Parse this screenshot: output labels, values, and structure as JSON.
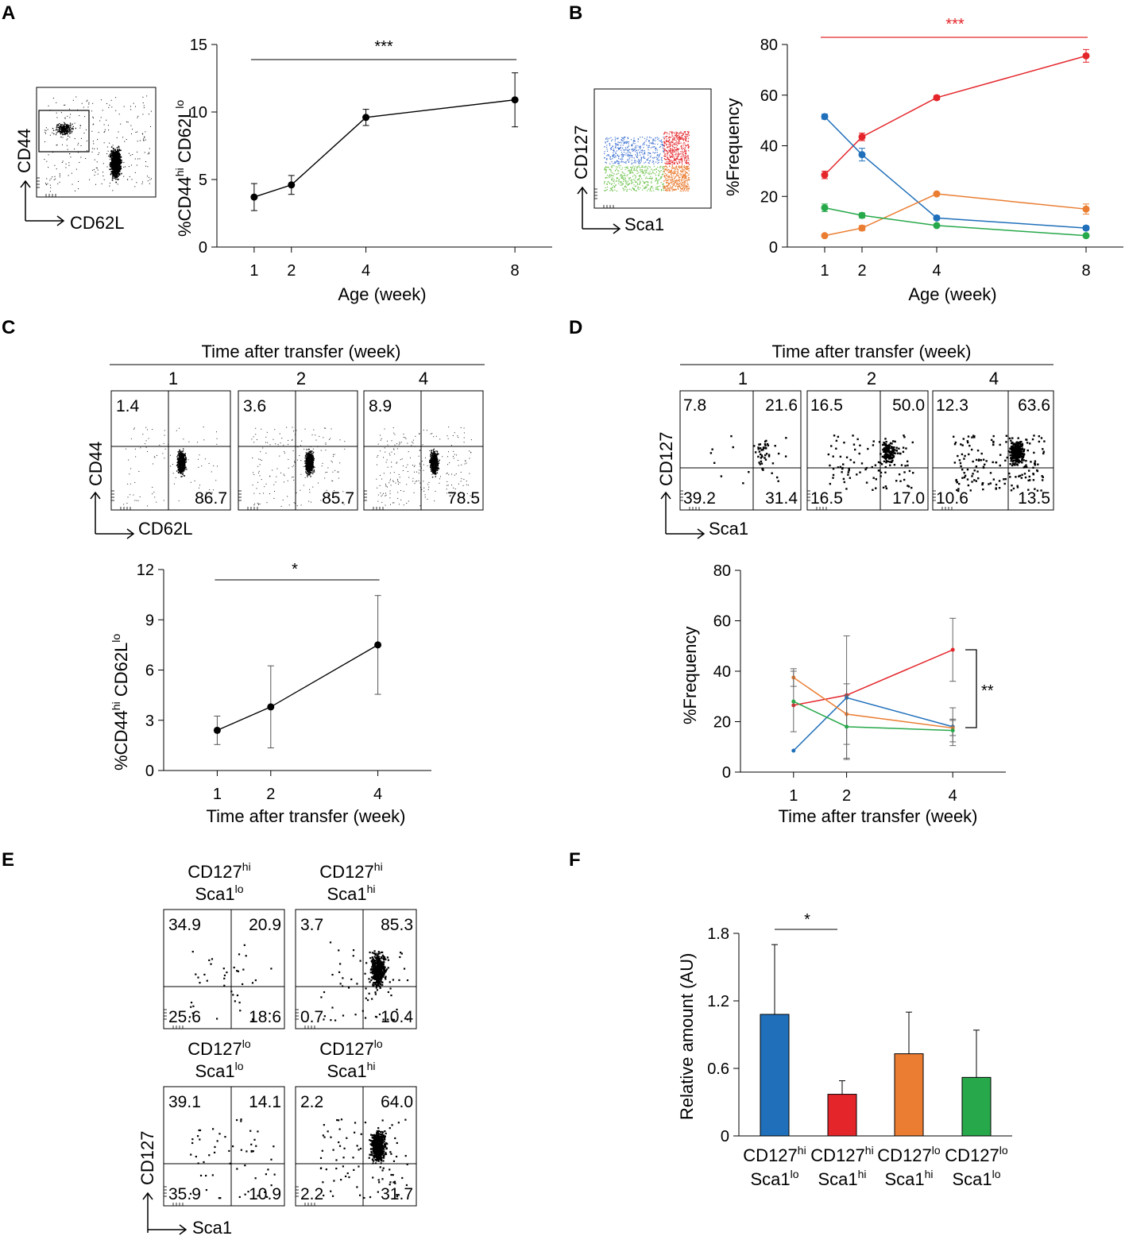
{
  "figure": {
    "panels": {
      "A": {
        "letter": "A",
        "flow": {
          "y_label": "CD44",
          "x_label": "CD62L"
        },
        "chart": {
          "ylabel_main": "%CD44",
          "ylabel_sup1": "hi",
          "ylabel_mid": " CD62L",
          "ylabel_sup2": "lo",
          "xlabel": "Age (week)",
          "sig": "***"
        }
      },
      "B": {
        "letter": "B",
        "flow": {
          "y_label": "CD127",
          "x_label": "Sca1"
        },
        "chart": {
          "ylabel": "%Frequency",
          "xlabel": "Age (week)",
          "sig": "***"
        }
      },
      "C": {
        "letter": "C",
        "header": "Time after transfer (week)",
        "plot_titles": [
          "1",
          "2",
          "4"
        ],
        "plots": [
          {
            "ul": "1.4",
            "lr": "86.7"
          },
          {
            "ul": "3.6",
            "lr": "85.7"
          },
          {
            "ul": "8.9",
            "lr": "78.5"
          }
        ],
        "y_label": "CD44",
        "x_label": "CD62L",
        "chart": {
          "ylabel_main": "%CD44",
          "ylabel_sup1": "hi",
          "ylabel_mid": " CD62L",
          "ylabel_sup2": "lo",
          "xlabel": "Time after transfer (week)",
          "sig": "*"
        }
      },
      "D": {
        "letter": "D",
        "header": "Time after transfer (week)",
        "plot_titles": [
          "1",
          "2",
          "4"
        ],
        "plots": [
          {
            "ul": "7.8",
            "ur": "21.6",
            "ll": "39.2",
            "lr": "31.4"
          },
          {
            "ul": "16.5",
            "ur": "50.0",
            "ll": "16.5",
            "lr": "17.0"
          },
          {
            "ul": "12.3",
            "ur": "63.6",
            "ll": "10.6",
            "lr": "13.5"
          }
        ],
        "y_label": "CD127",
        "x_label": "Sca1",
        "chart": {
          "ylabel": "%Frequency",
          "xlabel": "Time after transfer (week)",
          "sig": "**"
        }
      },
      "E": {
        "letter": "E",
        "plots": [
          {
            "title_a": "CD127",
            "sup_a": "hi",
            "title_b": "Sca1",
            "sup_b": "lo",
            "ul": "34.9",
            "ur": "20.9",
            "ll": "25.6",
            "lr": "18.6"
          },
          {
            "title_a": "CD127",
            "sup_a": "hi",
            "title_b": "Sca1",
            "sup_b": "hi",
            "ul": "3.7",
            "ur": "85.3",
            "ll": "0.7",
            "lr": "10.4"
          },
          {
            "title_a": "CD127",
            "sup_a": "lo",
            "title_b": "Sca1",
            "sup_b": "lo",
            "ul": "39.1",
            "ur": "14.1",
            "ll": "35.9",
            "lr": "10.9"
          },
          {
            "title_a": "CD127",
            "sup_a": "lo",
            "title_b": "Sca1",
            "sup_b": "hi",
            "ul": "2.2",
            "ur": "64.0",
            "ll": "2.2",
            "lr": "31.7"
          }
        ],
        "y_label": "CD127",
        "x_label": "Sca1"
      },
      "F": {
        "letter": "F",
        "chart": {
          "ylabel": "Relative amount (AU)",
          "sig": "*"
        }
      }
    },
    "colors": {
      "blue": "#1f6fba",
      "red": "#e4262b",
      "orange": "#ea7d32",
      "green": "#27a84a",
      "black": "#000000"
    }
  },
  "chart_data": [
    {
      "id": "A",
      "type": "line",
      "title": "",
      "xlabel": "Age (week)",
      "ylabel": "%CD44hi CD62Llo",
      "x": [
        1,
        2,
        4,
        8
      ],
      "xticks": [
        1,
        2,
        4,
        8
      ],
      "xlim": [
        0,
        9
      ],
      "ylim": [
        0,
        15
      ],
      "yticks": [
        0,
        5,
        10,
        15
      ],
      "series": [
        {
          "name": "CD44hi CD62Llo",
          "color": "black",
          "values": [
            3.7,
            4.6,
            9.6,
            10.9
          ],
          "err": [
            1.0,
            0.7,
            0.6,
            2.0
          ]
        }
      ],
      "significance": {
        "label": "***",
        "from": 1,
        "to": 8
      }
    },
    {
      "id": "B",
      "type": "line",
      "title": "",
      "xlabel": "Age (week)",
      "ylabel": "%Frequency",
      "x": [
        1,
        2,
        4,
        8
      ],
      "xticks": [
        1,
        2,
        4,
        8
      ],
      "xlim": [
        0,
        9
      ],
      "ylim": [
        0,
        80
      ],
      "yticks": [
        0,
        20,
        40,
        60,
        80
      ],
      "series": [
        {
          "name": "CD127hi Sca1hi",
          "color": "red",
          "values": [
            28.5,
            43.5,
            59.0,
            75.5
          ],
          "err": [
            1.5,
            1.5,
            0.8,
            2.5
          ]
        },
        {
          "name": "CD127hi Sca1lo",
          "color": "blue",
          "values": [
            51.5,
            36.5,
            11.5,
            7.5
          ],
          "err": [
            1.0,
            2.5,
            0.8,
            0.8
          ]
        },
        {
          "name": "CD127lo Sca1hi",
          "color": "orange",
          "values": [
            4.5,
            7.5,
            21.0,
            15.0
          ],
          "err": [
            0.5,
            1.0,
            0.5,
            2.0
          ]
        },
        {
          "name": "CD127lo Sca1lo",
          "color": "green",
          "values": [
            15.5,
            12.5,
            8.5,
            4.5
          ],
          "err": [
            1.5,
            1.0,
            0.5,
            0.5
          ]
        }
      ],
      "significance": {
        "label": "***",
        "from": 1,
        "to": 8,
        "color": "red"
      }
    },
    {
      "id": "C",
      "type": "line",
      "title": "",
      "xlabel": "Time after transfer (week)",
      "ylabel": "%CD44hi CD62Llo",
      "x": [
        1,
        2,
        4
      ],
      "xticks": [
        1,
        2,
        4
      ],
      "xlim": [
        0,
        5
      ],
      "ylim": [
        0,
        12
      ],
      "yticks": [
        0,
        3,
        6,
        9,
        12
      ],
      "series": [
        {
          "name": "CD44hi CD62Llo",
          "color": "black",
          "values": [
            2.4,
            3.8,
            7.5
          ],
          "err": [
            0.85,
            2.45,
            2.95
          ]
        }
      ],
      "significance": {
        "label": "*",
        "from": 1,
        "to": 4
      }
    },
    {
      "id": "D",
      "type": "line",
      "title": "",
      "xlabel": "Time after transfer (week)",
      "ylabel": "%Frequency",
      "x": [
        1,
        2,
        4
      ],
      "xticks": [
        1,
        2,
        4
      ],
      "xlim": [
        0,
        5
      ],
      "ylim": [
        0,
        80
      ],
      "yticks": [
        0,
        20,
        40,
        60,
        80
      ],
      "series": [
        {
          "name": "CD127hi Sca1hi",
          "color": "red",
          "values": [
            26.5,
            30.5,
            48.5
          ],
          "err": [
            0,
            0,
            12.5
          ]
        },
        {
          "name": "CD127hi Sca1lo",
          "color": "blue",
          "values": [
            8.5,
            29.5,
            18.0
          ],
          "err": [
            0,
            24.5,
            7.5
          ]
        },
        {
          "name": "CD127lo Sca1hi",
          "color": "orange",
          "values": [
            37.5,
            23.0,
            17.5
          ],
          "err": [
            3.5,
            12.0,
            3.0
          ]
        },
        {
          "name": "CD127lo Sca1lo",
          "color": "green",
          "values": [
            28.0,
            18.0,
            16.5
          ],
          "err": [
            12.0,
            12.5,
            4.5
          ]
        }
      ],
      "significance": {
        "label": "**",
        "between": [
          "CD127hi Sca1hi",
          "CD127hi Sca1lo"
        ]
      }
    },
    {
      "id": "F",
      "type": "bar",
      "title": "",
      "xlabel": "",
      "ylabel": "Relative amount (AU)",
      "categories": [
        "CD127hi Sca1lo",
        "CD127hi Sca1hi",
        "CD127lo Sca1hi",
        "CD127lo Sca1lo"
      ],
      "category_parts": [
        {
          "a": "CD127",
          "sa": "hi",
          "b": "Sca1",
          "sb": "lo"
        },
        {
          "a": "CD127",
          "sa": "hi",
          "b": "Sca1",
          "sb": "hi"
        },
        {
          "a": "CD127",
          "sa": "lo",
          "b": "Sca1",
          "sb": "hi"
        },
        {
          "a": "CD127",
          "sa": "lo",
          "b": "Sca1",
          "sb": "lo"
        }
      ],
      "values": [
        1.08,
        0.37,
        0.73,
        0.52
      ],
      "err": [
        0.62,
        0.12,
        0.37,
        0.42
      ],
      "colors": [
        "blue",
        "red",
        "orange",
        "green"
      ],
      "ylim": [
        0,
        1.8
      ],
      "yticks": [
        0,
        0.6,
        1.2,
        1.8
      ],
      "significance": {
        "label": "*",
        "from": 0,
        "to": 1
      }
    }
  ]
}
